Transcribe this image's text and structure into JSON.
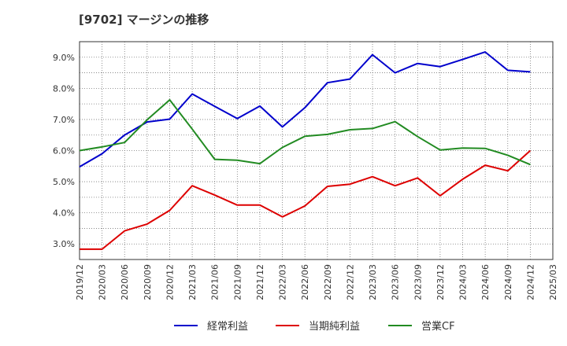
{
  "chart_data": {
    "type": "line",
    "title": "[9702]  マージンの推移",
    "xlabel": "",
    "ylabel": "",
    "x_ticks": [
      "2019/12",
      "2020/03",
      "2020/06",
      "2020/09",
      "2020/12",
      "2021/03",
      "2021/06",
      "2021/09",
      "2021/12",
      "2022/03",
      "2022/06",
      "2022/09",
      "2022/12",
      "2023/03",
      "2023/06",
      "2023/09",
      "2023/12",
      "2024/03",
      "2024/06",
      "2024/09",
      "2024/12",
      "2025/03"
    ],
    "y_ticks": [
      "3.0%",
      "4.0%",
      "5.0%",
      "6.0%",
      "7.0%",
      "8.0%",
      "9.0%"
    ],
    "ylim": [
      2.5,
      9.5
    ],
    "grid": true,
    "legend_position": "bottom",
    "categories": [
      "2019/12",
      "2020/03",
      "2020/06",
      "2020/09",
      "2020/12",
      "2021/03",
      "2021/06",
      "2021/09",
      "2021/12",
      "2022/03",
      "2022/06",
      "2022/09",
      "2022/12",
      "2023/03",
      "2023/06",
      "2023/09",
      "2023/12",
      "2024/03",
      "2024/06",
      "2024/09",
      "2024/12"
    ],
    "series": [
      {
        "name": "経常利益",
        "color": "#0000cc",
        "values": [
          5.48,
          5.9,
          6.5,
          6.92,
          7.01,
          7.82,
          7.42,
          7.03,
          7.43,
          6.76,
          7.38,
          8.18,
          8.3,
          9.08,
          8.5,
          8.8,
          8.7,
          8.93,
          9.17,
          8.58,
          8.53
        ]
      },
      {
        "name": "当期純利益",
        "color": "#dd0000",
        "values": [
          2.83,
          2.83,
          3.42,
          3.64,
          4.08,
          4.87,
          4.57,
          4.25,
          4.25,
          3.87,
          4.22,
          4.85,
          4.92,
          5.16,
          4.87,
          5.12,
          4.55,
          5.08,
          5.53,
          5.35,
          6.0
        ]
      },
      {
        "name": "営業CF",
        "color": "#228b22",
        "values": [
          6.0,
          6.12,
          6.26,
          6.99,
          7.63,
          6.69,
          5.72,
          5.69,
          5.58,
          6.1,
          6.46,
          6.52,
          6.67,
          6.71,
          6.93,
          6.45,
          6.02,
          6.08,
          6.07,
          5.85,
          5.55
        ]
      }
    ]
  }
}
